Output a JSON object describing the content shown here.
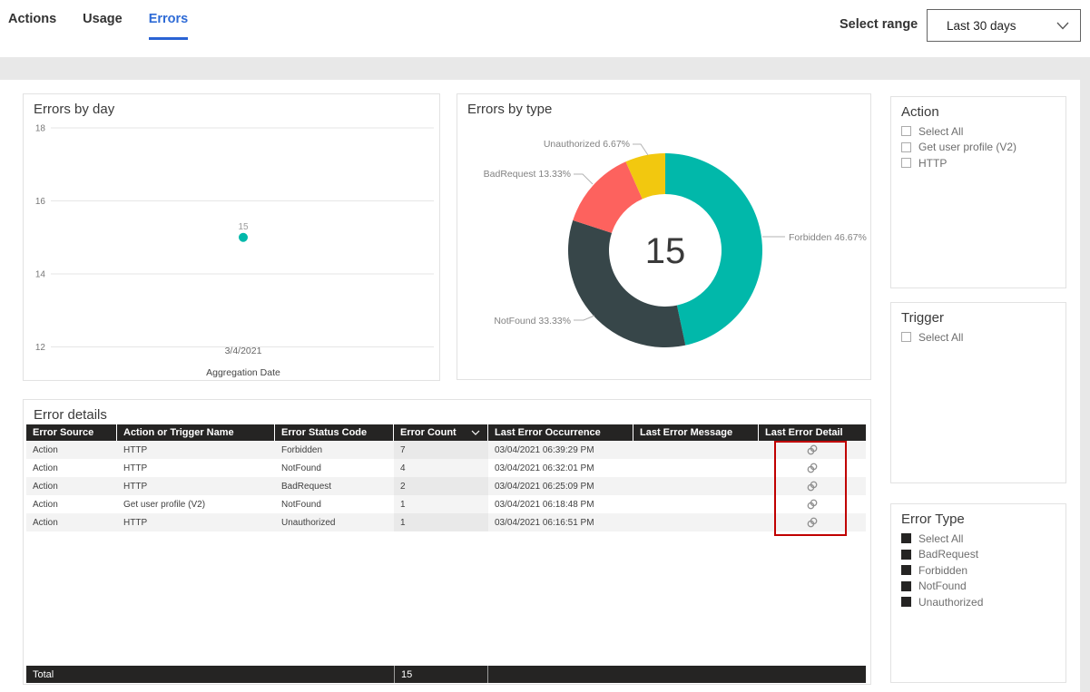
{
  "header": {
    "tabs": [
      {
        "label": "Actions"
      },
      {
        "label": "Usage"
      },
      {
        "label": "Errors"
      }
    ],
    "active_tab": "Errors",
    "range_label": "Select range",
    "range_value": "Last 30 days"
  },
  "colors": {
    "tab_active": "#2e6bd6",
    "teal": "#01B8AA",
    "dark": "#374649",
    "red": "#FD625E",
    "yellow": "#F2C80F",
    "table_header_bg": "#252423",
    "annotation_red": "#c00000"
  },
  "chart_data": [
    {
      "name": "errors_by_day",
      "type": "scatter",
      "title": "Errors by day",
      "xlabel": "Aggregation Date",
      "x": [
        "3/4/2021"
      ],
      "y": [
        15
      ],
      "ylim": [
        12,
        18
      ],
      "yticks": [
        18,
        16,
        14,
        12
      ],
      "point_label": "15",
      "point_color": "#01B8AA",
      "grid": true
    },
    {
      "name": "errors_by_type",
      "type": "donut",
      "title": "Errors by type",
      "center_label": "15",
      "slices": [
        {
          "label": "Forbidden",
          "value": 7,
          "pct": 46.67,
          "display": "Forbidden 46.67%",
          "color": "#01B8AA"
        },
        {
          "label": "NotFound",
          "value": 5,
          "pct": 33.33,
          "display": "NotFound 33.33%",
          "color": "#374649"
        },
        {
          "label": "BadRequest",
          "value": 2,
          "pct": 13.33,
          "display": "BadRequest 13.33%",
          "color": "#FD625E"
        },
        {
          "label": "Unauthorized",
          "value": 1,
          "pct": 6.67,
          "display": "Unauthorized 6.67%",
          "color": "#F2C80F"
        }
      ],
      "legend_position": "callouts"
    }
  ],
  "filters": [
    {
      "title": "Action",
      "items": [
        {
          "label": "Select All",
          "checked": false
        },
        {
          "label": "Get user profile (V2)",
          "checked": false
        },
        {
          "label": "HTTP",
          "checked": false
        }
      ]
    },
    {
      "title": "Trigger",
      "items": [
        {
          "label": "Select All",
          "checked": false
        }
      ]
    },
    {
      "title": "Error Type",
      "items": [
        {
          "label": "Select All",
          "checked": true
        },
        {
          "label": "BadRequest",
          "checked": true
        },
        {
          "label": "Forbidden",
          "checked": true
        },
        {
          "label": "NotFound",
          "checked": true
        },
        {
          "label": "Unauthorized",
          "checked": true
        }
      ]
    }
  ],
  "error_details": {
    "title": "Error details",
    "columns": [
      "Error Source",
      "Action or Trigger Name",
      "Error Status Code",
      "Error Count",
      "Last Error Occurrence",
      "Last Error Message",
      "Last Error Detail"
    ],
    "sorted_column": "Error Count",
    "rows": [
      [
        "Action",
        "HTTP",
        "Forbidden",
        "7",
        "03/04/2021 06:39:29 PM",
        "",
        ""
      ],
      [
        "Action",
        "HTTP",
        "NotFound",
        "4",
        "03/04/2021 06:32:01 PM",
        "",
        ""
      ],
      [
        "Action",
        "HTTP",
        "BadRequest",
        "2",
        "03/04/2021 06:25:09 PM",
        "",
        ""
      ],
      [
        "Action",
        "Get user profile (V2)",
        "NotFound",
        "1",
        "03/04/2021 06:18:48 PM",
        "",
        ""
      ],
      [
        "Action",
        "HTTP",
        "Unauthorized",
        "1",
        "03/04/2021 06:16:51 PM",
        "",
        ""
      ]
    ],
    "total_label": "Total",
    "total_value": "15"
  }
}
